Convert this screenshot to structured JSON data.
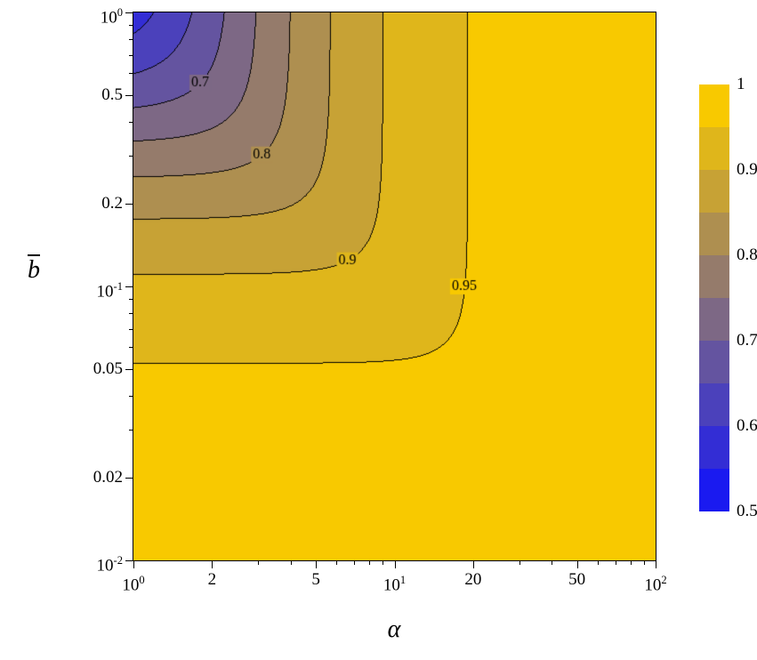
{
  "figure": {
    "background": "#FFFFFF",
    "frame_color": "#000000"
  },
  "axes": {
    "x": {
      "label": "α",
      "scale": "log",
      "min": 1,
      "max": 100,
      "major_ticks": [
        {
          "value": 1,
          "label": "10",
          "exp": "0"
        },
        {
          "value": 2,
          "label": "2"
        },
        {
          "value": 5,
          "label": "5"
        },
        {
          "value": 10,
          "label": "10",
          "exp": "1"
        },
        {
          "value": 20,
          "label": "20"
        },
        {
          "value": 50,
          "label": "50"
        },
        {
          "value": 100,
          "label": "10",
          "exp": "2"
        }
      ],
      "minor_ticks": [
        3,
        4,
        6,
        7,
        8,
        9,
        30,
        40,
        60,
        70,
        80,
        90
      ]
    },
    "y": {
      "label": "b",
      "label_overline": true,
      "scale": "log",
      "min": 0.01,
      "max": 1,
      "major_ticks": [
        {
          "value": 1,
          "label": "10",
          "exp": "0"
        },
        {
          "value": 0.5,
          "label": "0.5"
        },
        {
          "value": 0.2,
          "label": "0.2"
        },
        {
          "value": 0.1,
          "label": "10",
          "exp": "-1"
        },
        {
          "value": 0.05,
          "label": "0.05"
        },
        {
          "value": 0.02,
          "label": "0.02"
        },
        {
          "value": 0.01,
          "label": "10",
          "exp": "-2"
        }
      ],
      "minor_ticks": [
        0.9,
        0.8,
        0.7,
        0.6,
        0.4,
        0.3,
        0.09,
        0.08,
        0.07,
        0.06,
        0.04,
        0.03
      ]
    }
  },
  "chart_data": {
    "type": "contour",
    "title": "",
    "xlabel": "α",
    "ylabel": "b (with overbar)",
    "x_scale": "log",
    "y_scale": "log",
    "x_range": [
      1,
      100
    ],
    "y_range": [
      0.01,
      1
    ],
    "value_range": [
      0.5,
      1.0
    ],
    "levels": [
      0.5,
      0.55,
      0.6,
      0.65,
      0.7,
      0.75,
      0.8,
      0.85,
      0.9,
      0.95,
      1.0
    ],
    "labeled_levels": [
      0.7,
      0.8,
      0.9,
      0.95
    ],
    "band_colors": [
      "#1A1AF0",
      "#332DD5",
      "#4B41BB",
      "#6454A0",
      "#7D6885",
      "#957B6B",
      "#AE8F50",
      "#C7A235",
      "#DFB61B",
      "#F8C900"
    ],
    "contour_line_color": "#000000",
    "contour_intercepts": [
      {
        "level": 0.95,
        "b_at_alpha_1": 0.053,
        "alpha_at_b_1": 19
      },
      {
        "level": 0.9,
        "b_at_alpha_1": 0.11,
        "alpha_at_b_1": 9
      },
      {
        "level": 0.85,
        "b_at_alpha_1": 0.18,
        "alpha_at_b_1": 5.7
      },
      {
        "level": 0.8,
        "b_at_alpha_1": 0.25,
        "alpha_at_b_1": 4
      },
      {
        "level": 0.75,
        "b_at_alpha_1": 0.34,
        "alpha_at_b_1": 3
      },
      {
        "level": 0.7,
        "b_at_alpha_1": 0.45,
        "alpha_at_b_1": 2.2
      },
      {
        "level": 0.65,
        "b_at_alpha_1": 0.6,
        "alpha_at_b_1": 1.7
      },
      {
        "level": 0.6,
        "b_at_alpha_1": 0.84,
        "alpha_at_b_1": 1.2
      }
    ],
    "surface": {
      "comment": "estimated surface: value near 1 for large alpha or small b-bar; deficit is soft minimum of b/(1+b) and 1/(1+alpha)",
      "p": 4,
      "v_formula": "1 - Math.pow(Math.pow(b/(1+b), -p) + Math.pow(1/(1+a), -p), -1/p)"
    },
    "contour_labels": [
      {
        "level": 0.7,
        "text": "0.7",
        "alpha": 1.8,
        "b": 0.554
      },
      {
        "level": 0.8,
        "text": "0.8",
        "alpha": 3.1,
        "b": 0.303
      },
      {
        "level": 0.9,
        "text": "0.9",
        "alpha": 6.6,
        "b": 0.1245
      },
      {
        "level": 0.95,
        "text": "0.95",
        "alpha": 18.5,
        "b": 0.1
      }
    ],
    "colorbar": {
      "orientation": "vertical",
      "ticks": [
        {
          "value": 1,
          "label": "1"
        },
        {
          "value": 0.9,
          "label": "0.9"
        },
        {
          "value": 0.8,
          "label": "0.8"
        },
        {
          "value": 0.7,
          "label": "0.7"
        },
        {
          "value": 0.6,
          "label": "0.6"
        },
        {
          "value": 0.5,
          "label": "0.5"
        }
      ]
    }
  }
}
